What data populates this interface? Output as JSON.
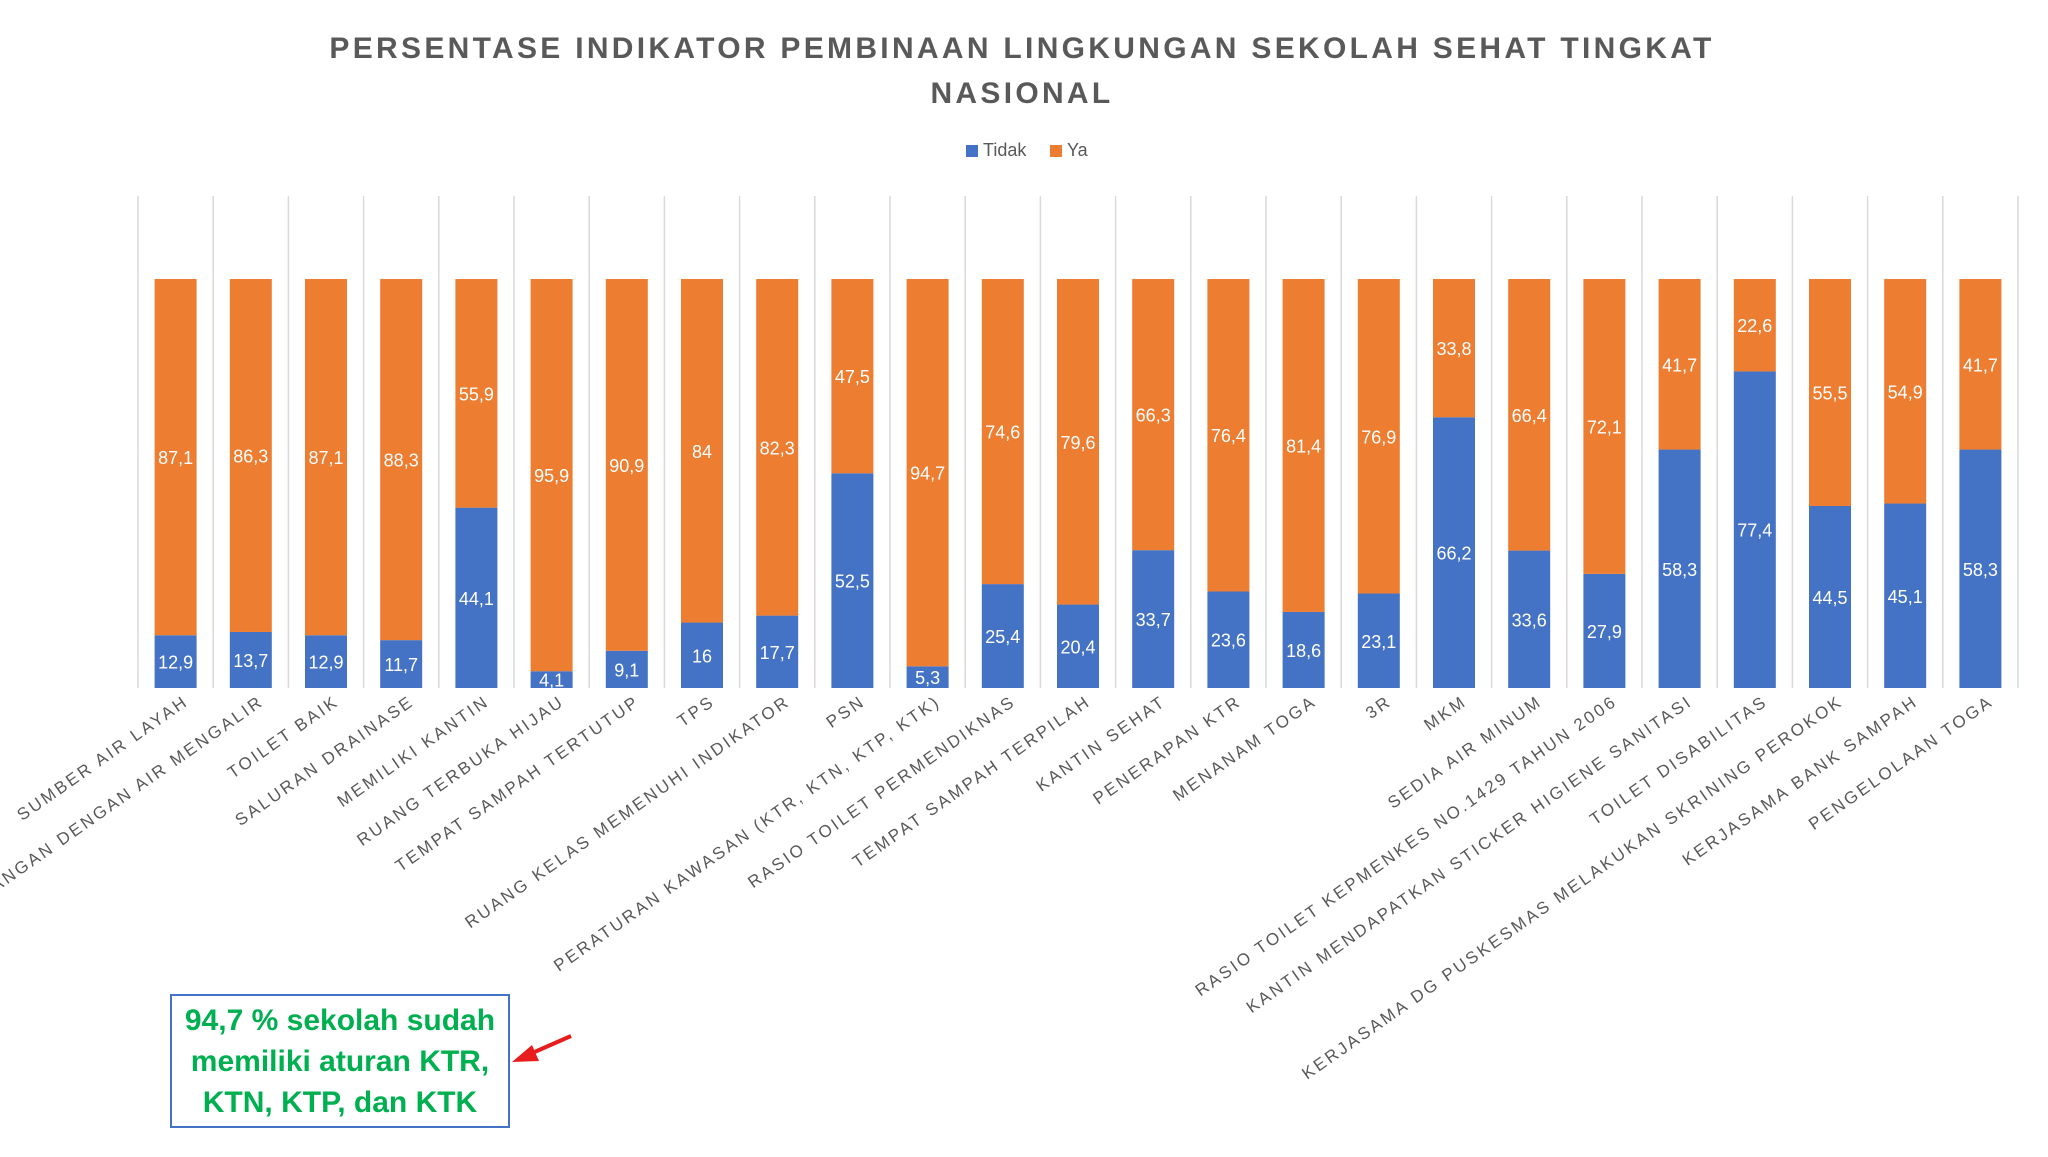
{
  "chart_data": {
    "type": "bar",
    "stacked": true,
    "title": "PERSENTASE INDIKATOR PEMBINAAN LINGKUNGAN SEKOLAH SEHAT TINGKAT NASIONAL",
    "title_lines": [
      "PERSENTASE INDIKATOR PEMBINAAN LINGKUNGAN SEKOLAH SEHAT TINGKAT",
      "NASIONAL"
    ],
    "xlabel": "",
    "ylabel": "",
    "ylim": [
      0,
      100
    ],
    "grid": "vertical",
    "legend_position": "top-center",
    "categories": [
      "SUMBER AIR LAYAH",
      "…ANGAN DENGAN AIR MENGALIR",
      "TOILET BAIK",
      "SALURAN DRAINASE",
      "MEMILIKI KANTIN",
      "RUANG TERBUKA HIJAU",
      "TEMPAT SAMPAH TERTUTUP",
      "TPS",
      "RUANG KELAS MEMENUHI INDIKATOR",
      "PSN",
      "PERATURAN KAWASAN (KTR, KTN, KTP, KTK)",
      "RASIO TOILET PERMENDIKNAS",
      "TEMPAT SAMPAH TERPILAH",
      "KANTIN SEHAT",
      "PENERAPAN KTR",
      "MENANAM TOGA",
      "3R",
      "MKM",
      "SEDIA AIR MINUM",
      "RASIO TOILET KEPMENKES NO.1429 TAHUN 2006",
      "KANTIN MENDAPATKAN STICKER HIGIENE SANITASI",
      "TOILET DISABILITAS",
      "KERJASAMA DG PUSKESMAS MELAKUKAN SKRINING PEROKOK",
      "KERJASAMA BANK SAMPAH",
      "PENGELOLAAN TOGA"
    ],
    "series": [
      {
        "name": "Tidak",
        "color": "#4472c4",
        "values": [
          12.9,
          13.7,
          12.9,
          11.7,
          44.1,
          4.1,
          9.1,
          16,
          17.7,
          52.5,
          5.3,
          25.4,
          20.4,
          33.7,
          23.6,
          18.6,
          23.1,
          66.2,
          33.6,
          27.9,
          58.3,
          77.4,
          44.5,
          45.1,
          58.3
        ],
        "labels": [
          "12,9",
          "13,7",
          "12,9",
          "11,7",
          "44,1",
          "4,1",
          "9,1",
          "16",
          "17,7",
          "52,5",
          "5,3",
          "25,4",
          "20,4",
          "33,7",
          "23,6",
          "18,6",
          "23,1",
          "66,2",
          "33,6",
          "27,9",
          "58,3",
          "77,4",
          "44,5",
          "45,1",
          "58,3"
        ]
      },
      {
        "name": "Ya",
        "color": "#ed7d31",
        "values": [
          87.1,
          86.3,
          87.1,
          88.3,
          55.9,
          95.9,
          90.9,
          84,
          82.3,
          47.5,
          94.7,
          74.6,
          79.6,
          66.3,
          76.4,
          81.4,
          76.9,
          33.8,
          66.4,
          72.1,
          41.7,
          22.6,
          55.5,
          54.9,
          41.7
        ],
        "labels": [
          "87,1",
          "86,3",
          "87,1",
          "88,3",
          "55,9",
          "95,9",
          "90,9",
          "84",
          "82,3",
          "47,5",
          "94,7",
          "74,6",
          "79,6",
          "66,3",
          "76,4",
          "81,4",
          "76,9",
          "33,8",
          "66,4",
          "72,1",
          "41,7",
          "22,6",
          "55,5",
          "54,9",
          "41,7"
        ]
      }
    ]
  },
  "callout": {
    "text": "94,7 % sekolah sudah\nmemiliki aturan KTR,\nKTN, KTP, dan KTK",
    "text_color": "#00b050",
    "border_color": "#4472c4",
    "arrow_color": "#e81c1c"
  },
  "colors": {
    "title": "#595959",
    "axis_text": "#595959",
    "grid": "#d9d9d9",
    "value_label": "#ffffff"
  }
}
